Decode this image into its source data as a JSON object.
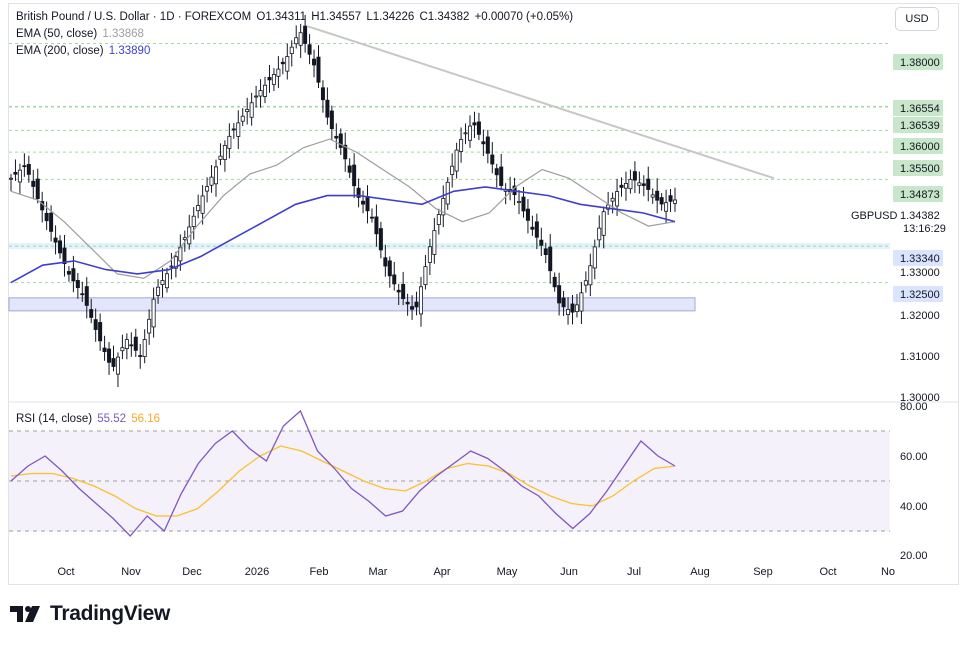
{
  "header": {
    "symbol_line": "British Pound / U.S. Dollar · 1D · FOREXCOM",
    "open": "O1.34311",
    "high": "H1.34557",
    "low": "L1.34226",
    "close": "C1.34382",
    "change": "+0.00070 (+0.05%)",
    "ema50_label": "EMA (50, close)",
    "ema50_value": "1.33868",
    "ema200_label": "EMA (200, close)",
    "ema200_value": "1.33890"
  },
  "currency_button": "USD",
  "price_axis": {
    "ticks": [
      "1.38000",
      "1.36554",
      "1.36539",
      "1.36000",
      "1.35500",
      "1.34873",
      "1.34382",
      "1.33340",
      "1.33000",
      "1.32500",
      "1.32000",
      "1.31000",
      "1.30000"
    ],
    "highlight_labels": [
      "1.38000",
      "1.36554",
      "1.36539",
      "1.36000",
      "1.35500",
      "1.34873",
      "1.33340",
      "1.32500"
    ],
    "symbol_tag": "GBPUSD",
    "countdown": "13:16:29"
  },
  "time_axis": [
    "Oct",
    "Nov",
    "Dec",
    "2026",
    "Feb",
    "Mar",
    "Apr",
    "May",
    "Jun",
    "Jul",
    "Aug",
    "Sep",
    "Oct",
    "No"
  ],
  "rsi": {
    "label": "RSI (14, close)",
    "value": "55.52",
    "ma_value": "56.16",
    "ticks": [
      "80.00",
      "60.00",
      "40.00",
      "20.00"
    ]
  },
  "brand": "TradingView",
  "colors": {
    "candle": "#131722",
    "ema50": "#9e9e9e",
    "ema200": "#3f3fcf",
    "rsi": "#7e57c2",
    "rsi_ma": "#fbc02d",
    "level_fill": "#c8e6c9",
    "support_fill": "#e3e6fb",
    "trendline": "#c7c7c7"
  },
  "chart_data": {
    "type": "candlestick",
    "title": "British Pound / U.S. Dollar · 1D · FOREXCOM",
    "ylim": [
      1.298,
      1.387
    ],
    "x": [
      "Oct",
      "Nov",
      "Dec",
      "2026",
      "Feb",
      "Mar",
      "Apr",
      "May",
      "Jun",
      "Jul"
    ],
    "close_path": [
      1.349,
      1.352,
      1.343,
      1.335,
      1.327,
      1.322,
      1.313,
      1.305,
      1.312,
      1.308,
      1.323,
      1.328,
      1.335,
      1.343,
      1.35,
      1.358,
      1.363,
      1.368,
      1.372,
      1.376,
      1.383,
      1.375,
      1.362,
      1.355,
      1.345,
      1.34,
      1.328,
      1.322,
      1.318,
      1.333,
      1.345,
      1.357,
      1.362,
      1.355,
      1.347,
      1.345,
      1.338,
      1.332,
      1.32,
      1.318,
      1.327,
      1.341,
      1.346,
      1.349,
      1.347,
      1.343,
      1.344
    ],
    "ema50_path": [
      1.346,
      1.344,
      1.339,
      1.333,
      1.327,
      1.326,
      1.33,
      1.338,
      1.345,
      1.35,
      1.352,
      1.356,
      1.358,
      1.355,
      1.351,
      1.347,
      1.342,
      1.339,
      1.341,
      1.347,
      1.351,
      1.349,
      1.345,
      1.341,
      1.338,
      1.339
    ],
    "ema200_path": [
      1.325,
      1.329,
      1.33,
      1.328,
      1.327,
      1.328,
      1.331,
      1.335,
      1.339,
      1.343,
      1.345,
      1.345,
      1.344,
      1.343,
      1.346,
      1.347,
      1.346,
      1.345,
      1.343,
      1.342,
      1.341,
      1.339
    ],
    "horizontal_levels": [
      1.38,
      1.36554,
      1.36539,
      1.36,
      1.355,
      1.34873,
      1.3334,
      1.325
    ],
    "support_zone": [
      1.3185,
      1.3215
    ],
    "trendline": {
      "from": [
        "Feb",
        1.384
      ],
      "to": [
        "Aug",
        1.349
      ]
    },
    "rsi_series": [
      50,
      56,
      60,
      54,
      47,
      41,
      35,
      28,
      36,
      30,
      45,
      57,
      65,
      70,
      63,
      58,
      72,
      78,
      62,
      55,
      47,
      42,
      36,
      38,
      46,
      52,
      57,
      62,
      59,
      54,
      48,
      44,
      37,
      31,
      37,
      46,
      56,
      66,
      60,
      56
    ],
    "rsi_ma_series": [
      52,
      53,
      53,
      51,
      48,
      44,
      39,
      36,
      36,
      39,
      46,
      54,
      60,
      64,
      62,
      58,
      54,
      50,
      47,
      46,
      50,
      55,
      57,
      56,
      53,
      48,
      44,
      41,
      40,
      44,
      50,
      55,
      56
    ],
    "rsi_ylim": [
      20,
      80
    ]
  }
}
